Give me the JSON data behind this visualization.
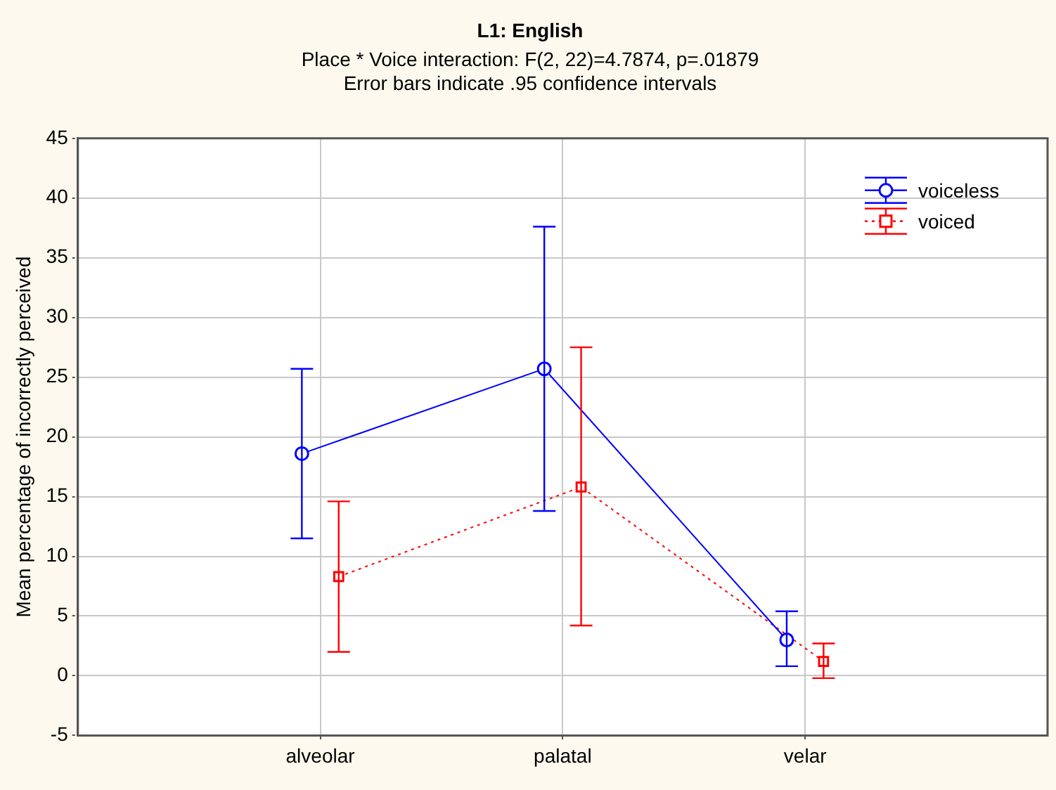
{
  "chart_data": {
    "type": "line",
    "title": "L1: English",
    "subtitle": "Place * Voice interaction: F(2, 22)=4.7874, p=.01879",
    "annotations": [
      "Error bars indicate .95 confidence intervals"
    ],
    "categories": [
      "alveolar",
      "palatal",
      "velar"
    ],
    "ylabel": "Mean percentage of incorrectly perceived",
    "ylim": [
      -5,
      45
    ],
    "yticks": [
      -5,
      0,
      5,
      10,
      15,
      20,
      25,
      30,
      35,
      40,
      45
    ],
    "grid": true,
    "legend": "top right",
    "series": [
      {
        "name": "voiceless",
        "color": "#0000ff",
        "marker": "circle",
        "line_style": "solid",
        "values": [
          18.6,
          25.7,
          3.0
        ],
        "errors": [
          [
            11.5,
            25.7
          ],
          [
            13.8,
            37.6
          ],
          [
            0.8,
            5.4
          ]
        ]
      },
      {
        "name": "voiced",
        "color": "#ff0000",
        "marker": "square",
        "line_style": "dotted",
        "values": [
          8.3,
          15.8,
          1.2
        ],
        "errors": [
          [
            2.0,
            14.6
          ],
          [
            4.2,
            27.5
          ],
          [
            -0.2,
            2.7
          ]
        ]
      }
    ]
  }
}
